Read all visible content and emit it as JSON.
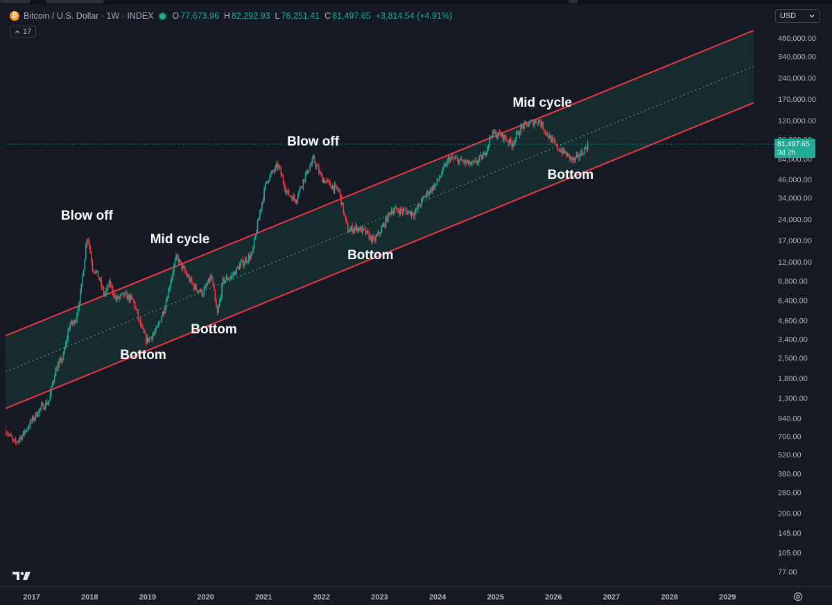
{
  "header": {
    "symbol_title": "Bitcoin / U.S. Dollar · 1W · INDEX",
    "ohlc": [
      {
        "key": "O",
        "value": "77,673.96"
      },
      {
        "key": "H",
        "value": "82,292.93"
      },
      {
        "key": "L",
        "value": "76,251.41"
      },
      {
        "key": "C",
        "value": "81,497.65"
      }
    ],
    "change": "+3,814.54 (+4.91%)",
    "indicator_count": "17",
    "logo_glyph": "₿"
  },
  "currency_select": {
    "value": "USD"
  },
  "last_price": {
    "value": "81,497.65",
    "countdown": "3d 2h"
  },
  "colors": {
    "background": "#151923",
    "up": "#22ab94",
    "down": "#f23645",
    "channel": "#f23645",
    "channel_fill": "#173a37"
  },
  "chart_data": {
    "type": "candlestick",
    "title": "Bitcoin / U.S. Dollar · 1W · INDEX",
    "scale": "log",
    "y_tick_labels": [
      "460,000.00",
      "340,000.00",
      "240,000.00",
      "170,000.00",
      "120,000.00",
      "88,000.00",
      "64,000.00",
      "46,000.00",
      "34,000.00",
      "24,000.00",
      "17,000.00",
      "12,000.00",
      "8,800.00",
      "6,400.00",
      "4,600.00",
      "3,400.00",
      "2,500.00",
      "1,800.00",
      "1,300.00",
      "940.00",
      "700.00",
      "520.00",
      "380.00",
      "280.00",
      "200.00",
      "145.00",
      "105.00",
      "77.00"
    ],
    "x_tick_labels": [
      "2017",
      "2018",
      "2019",
      "2020",
      "2021",
      "2022",
      "2023",
      "2024",
      "2025",
      "2026",
      "2027",
      "2028",
      "2029"
    ],
    "x_range": [
      2016.55,
      2029.75
    ],
    "ylim": [
      65,
      520000
    ],
    "price_path": [
      {
        "x": 2016.55,
        "y": 780
      },
      {
        "x": 2016.7,
        "y": 620
      },
      {
        "x": 2016.85,
        "y": 720
      },
      {
        "x": 2017.0,
        "y": 900
      },
      {
        "x": 2017.15,
        "y": 1100
      },
      {
        "x": 2017.3,
        "y": 1250
      },
      {
        "x": 2017.4,
        "y": 2000
      },
      {
        "x": 2017.55,
        "y": 2600
      },
      {
        "x": 2017.65,
        "y": 4300
      },
      {
        "x": 2017.75,
        "y": 4500
      },
      {
        "x": 2017.85,
        "y": 7500
      },
      {
        "x": 2017.96,
        "y": 19000
      },
      {
        "x": 2018.05,
        "y": 11000
      },
      {
        "x": 2018.15,
        "y": 9500
      },
      {
        "x": 2018.25,
        "y": 7000
      },
      {
        "x": 2018.35,
        "y": 8500
      },
      {
        "x": 2018.45,
        "y": 6500
      },
      {
        "x": 2018.6,
        "y": 7000
      },
      {
        "x": 2018.75,
        "y": 6400
      },
      {
        "x": 2018.88,
        "y": 4200
      },
      {
        "x": 2018.98,
        "y": 3300
      },
      {
        "x": 2019.15,
        "y": 3900
      },
      {
        "x": 2019.28,
        "y": 5500
      },
      {
        "x": 2019.45,
        "y": 11000
      },
      {
        "x": 2019.5,
        "y": 13000
      },
      {
        "x": 2019.65,
        "y": 10000
      },
      {
        "x": 2019.8,
        "y": 8000
      },
      {
        "x": 2019.95,
        "y": 7200
      },
      {
        "x": 2020.1,
        "y": 9500
      },
      {
        "x": 2020.2,
        "y": 5000
      },
      {
        "x": 2020.3,
        "y": 8800
      },
      {
        "x": 2020.45,
        "y": 9500
      },
      {
        "x": 2020.6,
        "y": 11500
      },
      {
        "x": 2020.8,
        "y": 13500
      },
      {
        "x": 2020.95,
        "y": 29000
      },
      {
        "x": 2021.05,
        "y": 45000
      },
      {
        "x": 2021.25,
        "y": 58000
      },
      {
        "x": 2021.4,
        "y": 37000
      },
      {
        "x": 2021.55,
        "y": 33000
      },
      {
        "x": 2021.7,
        "y": 47000
      },
      {
        "x": 2021.86,
        "y": 64000
      },
      {
        "x": 2022.0,
        "y": 47000
      },
      {
        "x": 2022.15,
        "y": 42000
      },
      {
        "x": 2022.3,
        "y": 38000
      },
      {
        "x": 2022.45,
        "y": 20000
      },
      {
        "x": 2022.6,
        "y": 21000
      },
      {
        "x": 2022.75,
        "y": 19500
      },
      {
        "x": 2022.9,
        "y": 16800
      },
      {
        "x": 2023.05,
        "y": 21000
      },
      {
        "x": 2023.2,
        "y": 28000
      },
      {
        "x": 2023.4,
        "y": 27500
      },
      {
        "x": 2023.6,
        "y": 26500
      },
      {
        "x": 2023.8,
        "y": 36000
      },
      {
        "x": 2023.98,
        "y": 43000
      },
      {
        "x": 2024.2,
        "y": 65000
      },
      {
        "x": 2024.4,
        "y": 62000
      },
      {
        "x": 2024.6,
        "y": 58000
      },
      {
        "x": 2024.8,
        "y": 68000
      },
      {
        "x": 2024.93,
        "y": 97000
      },
      {
        "x": 2025.1,
        "y": 95000
      },
      {
        "x": 2025.28,
        "y": 82000
      },
      {
        "x": 2025.45,
        "y": 108000
      },
      {
        "x": 2025.6,
        "y": 115000
      },
      {
        "x": 2025.75,
        "y": 120000
      },
      {
        "x": 2025.9,
        "y": 95000
      },
      {
        "x": 2026.05,
        "y": 78000
      },
      {
        "x": 2026.2,
        "y": 70000
      },
      {
        "x": 2026.35,
        "y": 62000
      },
      {
        "x": 2026.5,
        "y": 72000
      },
      {
        "x": 2026.6,
        "y": 81497.65
      }
    ],
    "channel": {
      "upper": [
        {
          "x": 2016.55,
          "y": 3600
        },
        {
          "x": 2029.45,
          "y": 520000
        }
      ],
      "middle": [
        {
          "x": 2016.55,
          "y": 2000
        },
        {
          "x": 2029.45,
          "y": 290000
        }
      ],
      "lower": [
        {
          "x": 2016.55,
          "y": 1100
        },
        {
          "x": 2029.45,
          "y": 160000
        }
      ]
    },
    "annotations": [
      {
        "text": "Blow off",
        "x": 2017.96,
        "y": 19000
      },
      {
        "text": "Mid cycle",
        "x": 2019.5,
        "y": 13000
      },
      {
        "text": "Bottom",
        "x": 2018.98,
        "y": 3300
      },
      {
        "text": "Bottom",
        "x": 2020.2,
        "y": 5000
      },
      {
        "text": "Blow off",
        "x": 2021.86,
        "y": 64000
      },
      {
        "text": "Bottom",
        "x": 2022.9,
        "y": 16800
      },
      {
        "text": "Mid cycle",
        "x": 2025.75,
        "y": 120000
      },
      {
        "text": "Bottom",
        "x": 2026.35,
        "y": 62000
      }
    ]
  }
}
